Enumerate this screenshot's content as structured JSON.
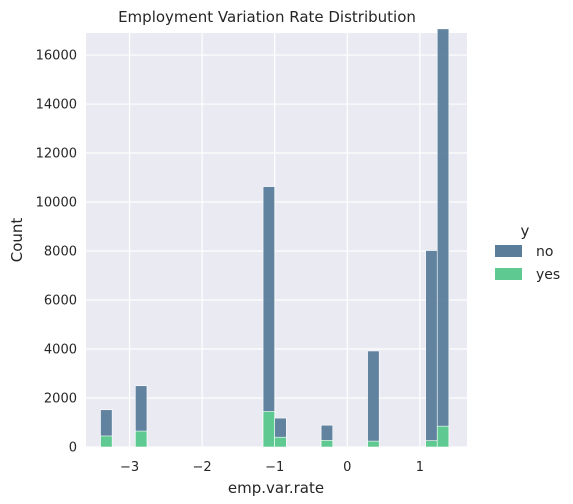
{
  "chart_data": {
    "type": "bar",
    "subtype": "stacked-histogram",
    "title": "Employment Variation Rate Distribution",
    "xlabel": "emp.var.rate",
    "ylabel": "Count",
    "xlim": [
      -3.6,
      1.65
    ],
    "ylim": [
      0,
      16900
    ],
    "xticks": [
      -3,
      -2,
      -1,
      0,
      1
    ],
    "xtick_labels": [
      "−3",
      "−2",
      "−1",
      "0",
      "1"
    ],
    "yticks": [
      0,
      2000,
      4000,
      6000,
      8000,
      10000,
      12000,
      14000,
      16000
    ],
    "ytick_labels": [
      "0",
      "2000",
      "4000",
      "6000",
      "8000",
      "10000",
      "12000",
      "14000",
      "16000"
    ],
    "bin_edges": [
      -3.4,
      1.4
    ],
    "bin_count": 30,
    "bins": [
      {
        "bin": 0,
        "no": 1070,
        "yes": 450
      },
      {
        "bin": 3,
        "no": 1850,
        "yes": 650
      },
      {
        "bin": 14,
        "no": 9180,
        "yes": 1450
      },
      {
        "bin": 15,
        "no": 780,
        "yes": 400
      },
      {
        "bin": 19,
        "no": 620,
        "yes": 270
      },
      {
        "bin": 23,
        "no": 3680,
        "yes": 240
      },
      {
        "bin": 28,
        "no": 7760,
        "yes": 260
      },
      {
        "bin": 29,
        "no": 16220,
        "yes": 850
      }
    ],
    "series": [
      {
        "name": "no",
        "color": "#5a7d9a"
      },
      {
        "name": "yes",
        "color": "#5ec990"
      }
    ],
    "legend": {
      "title": "y",
      "placement": "right"
    },
    "grid": true
  }
}
